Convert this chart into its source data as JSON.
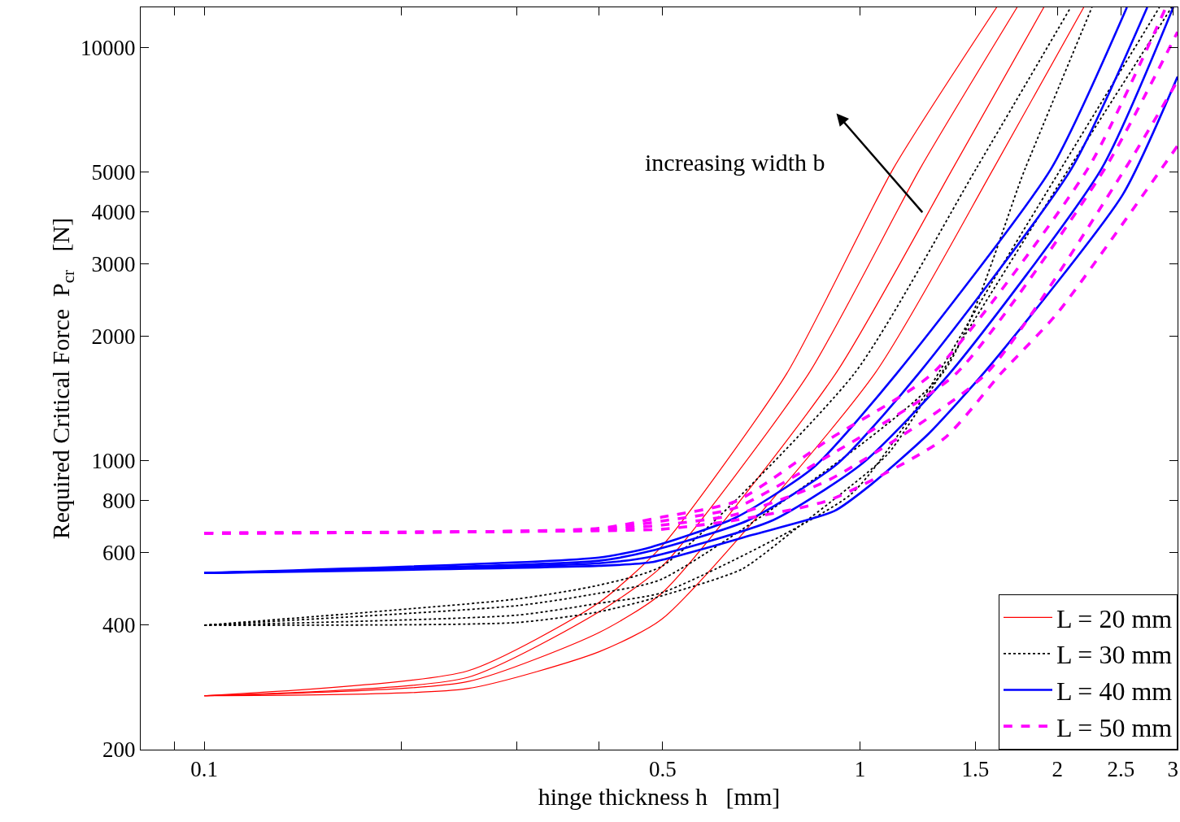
{
  "chart_data": {
    "type": "line",
    "xlabel": "hinge thickness h   [mm]",
    "ylabel": "Required Critical Force  P$_{cr}$   [N]",
    "log": "xy",
    "legend": "bottom right",
    "xlim": [
      0.08,
      3.05
    ],
    "ylim": [
      200,
      12500
    ],
    "xticks": [
      {
        "value": 0.09,
        "label": null
      },
      0.1,
      {
        "value": 0.2,
        "label": null
      },
      {
        "value": 0.3,
        "label": null
      },
      {
        "value": 0.4,
        "label": null
      },
      0.5,
      1,
      1.5,
      2,
      2.5,
      3
    ],
    "yticks": [
      200,
      400,
      600,
      800,
      1000,
      2000,
      3000,
      4000,
      5000,
      10000
    ],
    "annotations": [
      "increasing width b"
    ],
    "series": [
      {
        "name": "L = 20 mm",
        "color": "#ff0000",
        "line_style": "solid",
        "x": [
          0.1,
          0.252,
          0.4,
          0.5,
          0.773,
          1.124,
          1.616
        ],
        "values": [
          270,
          310,
          454,
          624,
          1624,
          5090,
          12500
        ]
      },
      {
        "color": "#ff0000",
        "line_style": "solid",
        "x": [
          0.1,
          0.252,
          0.4,
          0.5,
          0.835,
          1.235,
          1.736
        ],
        "values": [
          270,
          299,
          431,
          557,
          1624,
          5090,
          12500
        ]
      },
      {
        "color": "#ff0000",
        "line_style": "solid",
        "x": [
          0.1,
          0.252,
          0.4,
          0.5,
          0.918,
          1.385,
          1.907
        ],
        "values": [
          270,
          292,
          384,
          480,
          1624,
          5090,
          12500
        ]
      },
      {
        "color": "#ff0000",
        "line_style": "solid",
        "x": [
          0.1,
          0.252,
          0.4,
          0.5,
          1.053,
          1.598,
          2.194
        ],
        "values": [
          270,
          281,
          345,
          415,
          1624,
          5090,
          12500
        ]
      },
      {
        "name": "L = 30 mm",
        "color": "#000000",
        "line_style": "dotted",
        "x": [
          0.1,
          0.3,
          0.4,
          0.5,
          0.98,
          1.504,
          2.096
        ],
        "values": [
          400,
          463,
          500,
          557,
          1624,
          5090,
          12500
        ]
      },
      {
        "color": "#000000",
        "line_style": "dotted",
        "x": [
          0.1,
          0.3,
          0.4,
          0.5,
          1.335,
          1.786,
          2.258
        ],
        "values": [
          400,
          446,
          478,
          518,
          1624,
          5090,
          12500
        ]
      },
      {
        "color": "#000000",
        "line_style": "dotted",
        "x": [
          0.1,
          0.3,
          0.4,
          0.5,
          0.969,
          1.243,
          1.639,
          2.862
        ],
        "values": [
          400,
          423,
          452,
          480,
          830,
          1405,
          2928,
          12500
        ]
      },
      {
        "color": "#000000",
        "line_style": "dotted",
        "x": [
          0.1,
          0.3,
          0.4,
          0.48,
          0.661,
          0.8,
          0.934,
          1.105,
          1.504,
          2.002,
          2.987
        ],
        "values": [
          400,
          406,
          431,
          463,
          547,
          686,
          830,
          1042,
          2228,
          4607,
          12500
        ]
      },
      {
        "name": "L = 40 mm",
        "color": "#0000ff",
        "line_style": "solid",
        "x": [
          0.1,
          0.4,
          0.48,
          0.646,
          0.85,
          1.137,
          1.957,
          2.553
        ],
        "values": [
          535,
          583,
          618,
          728,
          964,
          1624,
          5090,
          12500
        ]
      },
      {
        "color": "#0000ff",
        "line_style": "solid",
        "x": [
          0.1,
          0.4,
          0.48,
          0.676,
          0.926,
          1.228,
          2.102,
          2.742
        ],
        "values": [
          535,
          573,
          605,
          718,
          986,
          1624,
          5090,
          12500
        ]
      },
      {
        "color": "#0000ff",
        "line_style": "solid",
        "x": [
          0.1,
          0.4,
          0.48,
          0.737,
          1.009,
          1.369,
          2.336,
          3.004
        ],
        "values": [
          535,
          565,
          586,
          718,
          986,
          1624,
          5090,
          12500
        ]
      },
      {
        "color": "#0000ff",
        "line_style": "solid",
        "x": [
          0.1,
          0.4,
          0.48,
          0.686,
          0.913,
          1.041,
          1.275,
          1.579,
          2.516,
          3.05
        ],
        "values": [
          535,
          557,
          568,
          662,
          755,
          877,
          1166,
          1699,
          4403,
          8492
        ]
      },
      {
        "name": "L = 50 mm",
        "color": "#ff00ff",
        "line_style": "dashed",
        "x": [
          0.1,
          0.4,
          0.5,
          0.646,
          0.9,
          1.289,
          2.226,
          2.928
        ],
        "values": [
          668,
          686,
          731,
          797,
          1130,
          1624,
          5090,
          12500
        ]
      },
      {
        "color": "#ff00ff",
        "line_style": "dashed",
        "x": [
          0.1,
          0.4,
          0.5,
          0.646,
          0.9,
          1.401,
          2.363,
          3.05
        ],
        "values": [
          668,
          683,
          715,
          769,
          1032,
          1624,
          5090,
          10900
        ]
      },
      {
        "color": "#ff00ff",
        "line_style": "dashed",
        "x": [
          0.1,
          0.4,
          0.5,
          0.646,
          0.9,
          1.557,
          2.538,
          3.05
        ],
        "values": [
          668,
          680,
          699,
          741,
          901,
          1624,
          5090,
          8298
        ]
      },
      {
        "color": "#ff00ff",
        "line_style": "dashed",
        "x": [
          0.1,
          0.4,
          0.5,
          0.646,
          0.9,
          1.342,
          1.639,
          2.002,
          3.05
        ],
        "values": [
          668,
          677,
          683,
          718,
          804,
          1130,
          1624,
          2280,
          5779
        ]
      }
    ]
  }
}
